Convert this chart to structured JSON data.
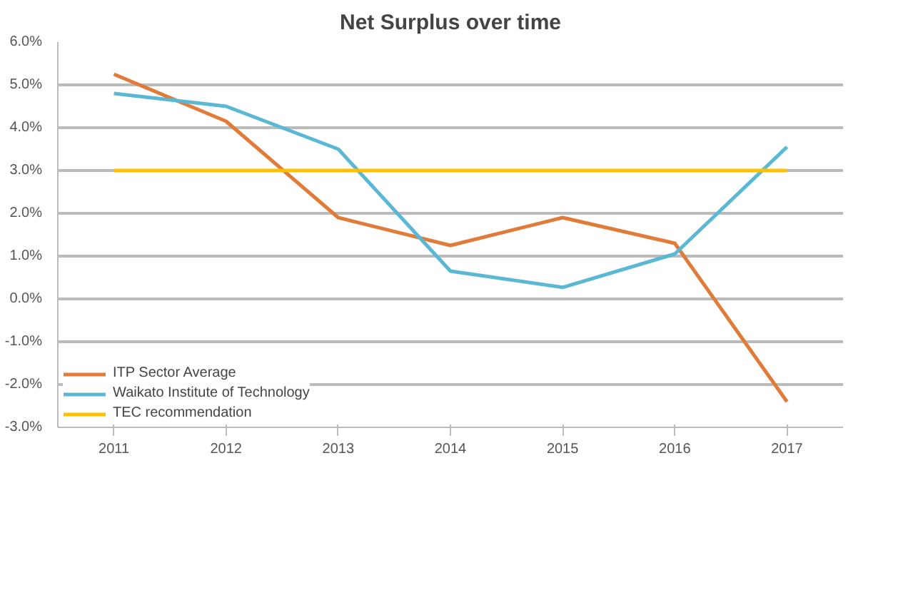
{
  "chart_data": {
    "type": "line",
    "title": "Net Surplus over time",
    "categories": [
      "2011",
      "2012",
      "2013",
      "2014",
      "2015",
      "2016",
      "2017"
    ],
    "series": [
      {
        "name": "ITP Sector Average",
        "color": "#e07b39",
        "values": [
          5.25,
          4.15,
          1.9,
          1.25,
          1.9,
          1.3,
          -2.4
        ]
      },
      {
        "name": "Waikato Institute of Technology",
        "color": "#5bb8d4",
        "values": [
          4.8,
          4.5,
          3.5,
          0.65,
          0.27,
          1.05,
          3.55
        ]
      },
      {
        "name": "TEC recommendation",
        "color": "#ffc000",
        "values": [
          3,
          3,
          3,
          3,
          3,
          3,
          3
        ]
      }
    ],
    "ylim": [
      -3,
      6
    ],
    "yticks": [
      {
        "value": -3,
        "label": "-3.0%"
      },
      {
        "value": -2,
        "label": "-2.0%"
      },
      {
        "value": -1,
        "label": "-1.0%"
      },
      {
        "value": 0,
        "label": "0.0%"
      },
      {
        "value": 1,
        "label": "1.0%"
      },
      {
        "value": 2,
        "label": "2.0%"
      },
      {
        "value": 3,
        "label": "3.0%"
      },
      {
        "value": 4,
        "label": "4.0%"
      },
      {
        "value": 5,
        "label": "5.0%"
      },
      {
        "value": 6,
        "label": "6.0%"
      }
    ],
    "grid": "y",
    "legend": "bottom left",
    "marker": "none",
    "line_style": "solid"
  }
}
